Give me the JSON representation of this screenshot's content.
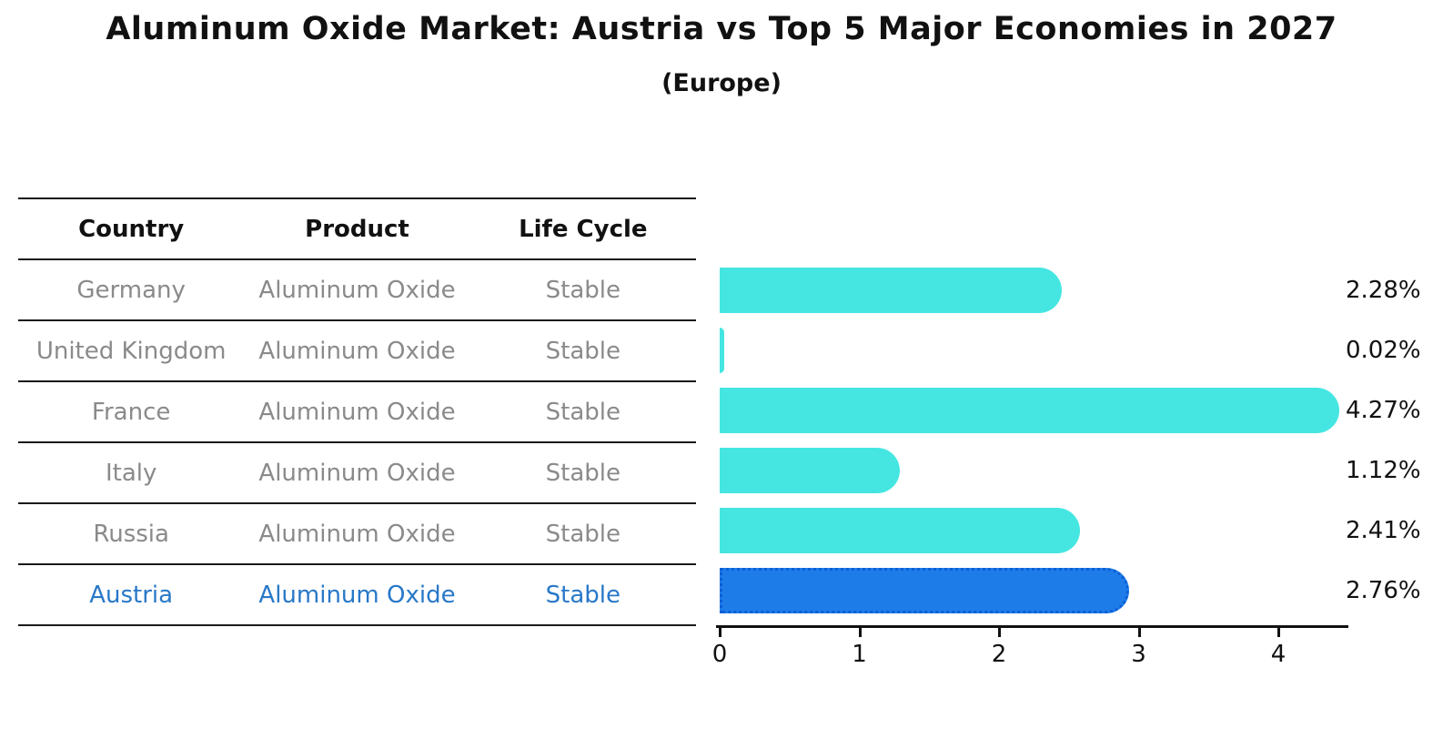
{
  "chart_data": {
    "type": "bar",
    "orientation": "horizontal",
    "title": "Aluminum Oxide Market: Austria vs Top 5 Major Economies in 2027",
    "subtitle": "(Europe)",
    "categories": [
      "Germany",
      "United Kingdom",
      "France",
      "Italy",
      "Russia",
      "Austria"
    ],
    "values": [
      2.28,
      0.02,
      4.27,
      1.12,
      2.41,
      2.76
    ],
    "value_labels": [
      "2.28%",
      "0.02%",
      "4.27%",
      "1.12%",
      "2.41%",
      "2.76%"
    ],
    "unit": "%",
    "xlim": [
      0,
      4.5
    ],
    "xticks": [
      0,
      1,
      2,
      3,
      4
    ],
    "grid": false,
    "legend": false,
    "highlight_index": 5,
    "colors": {
      "bar": "#45E6E2",
      "highlight_bar": "#1E7CE8",
      "highlight_border": "#0B5FD6",
      "highlight_text": "#2878C8",
      "table_text": "#8A8A8A",
      "header_text": "#111111",
      "axis": "#111111"
    }
  },
  "table": {
    "headers": [
      "Country",
      "Product",
      "Life Cycle"
    ],
    "rows": [
      {
        "country": "Germany",
        "product": "Aluminum Oxide",
        "life_cycle": "Stable",
        "highlight": false
      },
      {
        "country": "United Kingdom",
        "product": "Aluminum Oxide",
        "life_cycle": "Stable",
        "highlight": false
      },
      {
        "country": "France",
        "product": "Aluminum Oxide",
        "life_cycle": "Stable",
        "highlight": false
      },
      {
        "country": "Italy",
        "product": "Aluminum Oxide",
        "life_cycle": "Stable",
        "highlight": false
      },
      {
        "country": "Russia",
        "product": "Aluminum Oxide",
        "life_cycle": "Stable",
        "highlight": false
      },
      {
        "country": "Austria",
        "product": "Aluminum Oxide",
        "life_cycle": "Stable",
        "highlight": true
      }
    ]
  }
}
